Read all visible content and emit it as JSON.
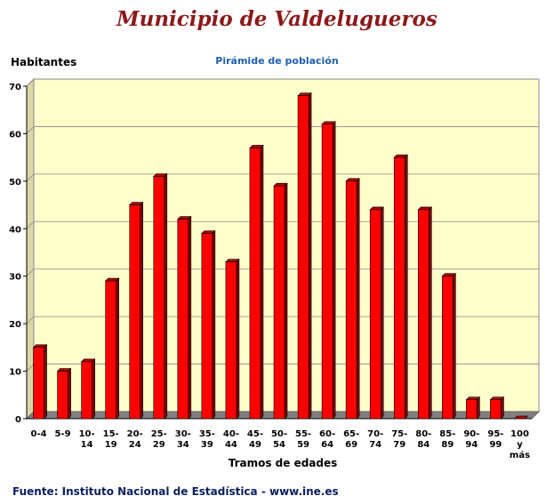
{
  "header": {
    "title": "Municipio de Valdelugueros",
    "subtitle": "Pirámide de población"
  },
  "footer": {
    "source": "Fuente: Instituto Nacional de Estadística - www.ine.es"
  },
  "colors": {
    "bar": "#ff0000",
    "plot_background": "#ffffcc",
    "title": "#8b1a1a",
    "subtitle": "#1f5fae"
  },
  "chart_data": {
    "type": "bar",
    "ylabel": "Habitantes",
    "xlabel": "Tramos de edades",
    "ylim": [
      0,
      70
    ],
    "yticks": [
      0,
      10,
      20,
      30,
      40,
      50,
      60,
      70
    ],
    "grid": true,
    "categories": [
      "0-4",
      "5-9",
      "10-14",
      "15-19",
      "20-24",
      "25-29",
      "30-34",
      "35-39",
      "40-44",
      "45-49",
      "50-54",
      "55-59",
      "60-64",
      "65-69",
      "70-74",
      "75-79",
      "80-84",
      "85-89",
      "90-94",
      "95-99",
      "100 y más"
    ],
    "category_labels": [
      [
        "0-4"
      ],
      [
        "5-9"
      ],
      [
        "10-",
        "14"
      ],
      [
        "15-",
        "19"
      ],
      [
        "20-",
        "24"
      ],
      [
        "25-",
        "29"
      ],
      [
        "30-",
        "34"
      ],
      [
        "35-",
        "39"
      ],
      [
        "40-",
        "44"
      ],
      [
        "45-",
        "49"
      ],
      [
        "50-",
        "54"
      ],
      [
        "55-",
        "59"
      ],
      [
        "60-",
        "64"
      ],
      [
        "65-",
        "69"
      ],
      [
        "70-",
        "74"
      ],
      [
        "75-",
        "79"
      ],
      [
        "80-",
        "84"
      ],
      [
        "85-",
        "89"
      ],
      [
        "90-",
        "94"
      ],
      [
        "95-",
        "99"
      ],
      [
        "100",
        "y",
        "más"
      ]
    ],
    "values": [
      15,
      10,
      12,
      29,
      45,
      51,
      42,
      39,
      33,
      57,
      49,
      68,
      62,
      50,
      44,
      55,
      44,
      30,
      4,
      4,
      0
    ]
  }
}
